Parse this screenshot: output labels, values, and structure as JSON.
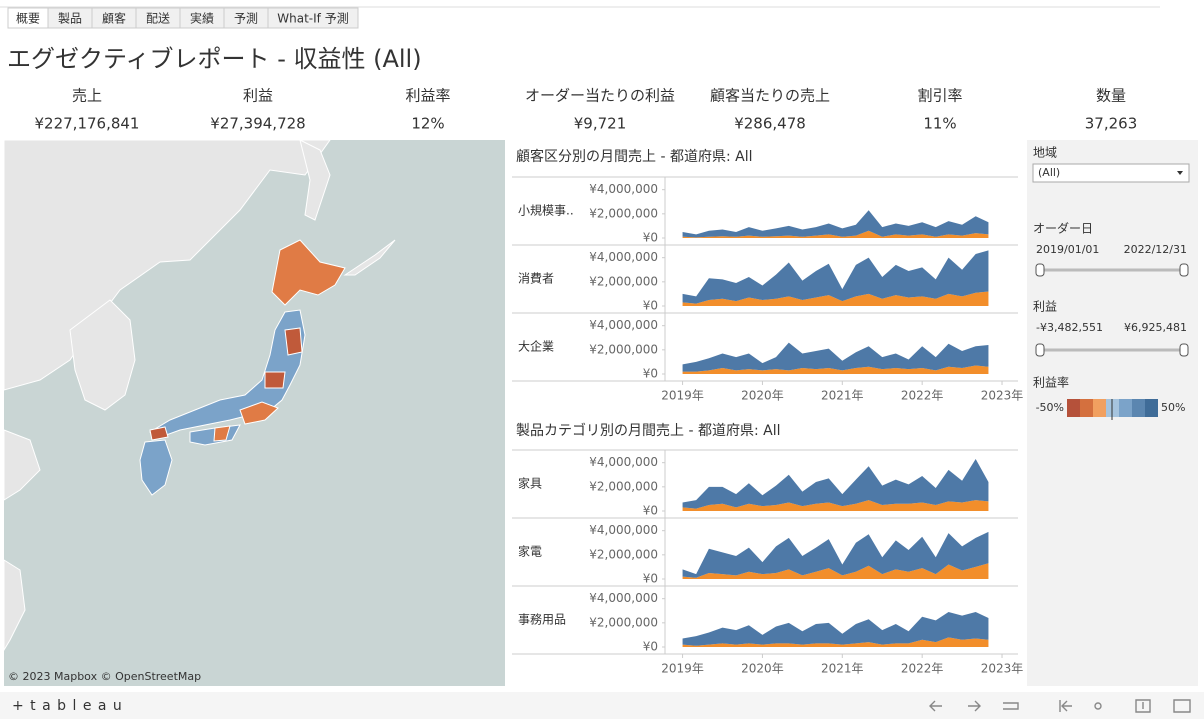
{
  "tabs": [
    "概要",
    "製品",
    "顧客",
    "配送",
    "実績",
    "予測",
    "What-If 予測"
  ],
  "dashboard_title": "エグゼクティブレポート - 収益性 (All)",
  "kpis": [
    {
      "label": "売上",
      "value": "¥227,176,841"
    },
    {
      "label": "利益",
      "value": "¥27,394,728"
    },
    {
      "label": "利益率",
      "value": "12%"
    },
    {
      "label": "オーダー当たりの利益",
      "value": "¥9,721"
    },
    {
      "label": "顧客当たりの売上",
      "value": "¥286,478"
    },
    {
      "label": "割引率",
      "value": "11%"
    },
    {
      "label": "数量",
      "value": "37,263"
    }
  ],
  "map": {
    "attribution": "© 2023 Mapbox  © OpenStreetMap"
  },
  "filters": {
    "region": {
      "label": "地域",
      "selected": "(All)"
    },
    "order_date": {
      "label": "オーダー日",
      "start": "2019/01/01",
      "end": "2022/12/31"
    },
    "profit": {
      "label": "利益",
      "min": "-¥3,482,551",
      "max": "¥6,925,481"
    },
    "profit_ratio": {
      "label": "利益率",
      "min": "-50%",
      "max": "50%"
    }
  },
  "footer": {
    "brand": "+ t a b l e a u"
  },
  "chart_data": [
    {
      "type": "area",
      "title": "顧客区分別の月間売上 - 都道府県: All",
      "x": [
        2019,
        2019.17,
        2019.33,
        2019.5,
        2019.67,
        2019.83,
        2020,
        2020.17,
        2020.33,
        2020.5,
        2020.67,
        2020.83,
        2021,
        2021.17,
        2021.33,
        2021.5,
        2021.67,
        2021.83,
        2022,
        2022.17,
        2022.33,
        2022.5,
        2022.67,
        2022.83
      ],
      "xlim": [
        2018.78,
        2023.2
      ],
      "xticks": [
        {
          "value": 2019,
          "label": "2019年"
        },
        {
          "value": 2020,
          "label": "2020年"
        },
        {
          "value": 2021,
          "label": "2021年"
        },
        {
          "value": 2022,
          "label": "2022年"
        },
        {
          "value": 2023,
          "label": "2023年"
        }
      ],
      "ylim": [
        0,
        4800000
      ],
      "yticks": [
        {
          "value": 4000000,
          "label": "¥4,000,000"
        },
        {
          "value": 2000000,
          "label": "¥2,000,000"
        },
        {
          "value": 0,
          "label": "¥0"
        }
      ],
      "panels": [
        {
          "name": "小規模事..",
          "series": [
            {
              "color": "#f28e2b",
              "values": [
                100000,
                50000,
                100000,
                150000,
                100000,
                200000,
                100000,
                150000,
                200000,
                100000,
                200000,
                300000,
                100000,
                200000,
                600000,
                100000,
                300000,
                200000,
                300000,
                100000,
                300000,
                200000,
                400000,
                300000
              ]
            },
            {
              "color": "#4e79a7",
              "values": [
                400000,
                250000,
                500000,
                550000,
                400000,
                700000,
                500000,
                650000,
                800000,
                600000,
                700000,
                900000,
                700000,
                900000,
                1700000,
                800000,
                900000,
                800000,
                1000000,
                800000,
                1100000,
                900000,
                1400000,
                1000000
              ]
            }
          ]
        },
        {
          "name": "消費者",
          "series": [
            {
              "color": "#f28e2b",
              "values": [
                300000,
                200000,
                500000,
                600000,
                400000,
                700000,
                500000,
                600000,
                800000,
                500000,
                700000,
                900000,
                400000,
                800000,
                1000000,
                600000,
                900000,
                700000,
                800000,
                600000,
                1000000,
                800000,
                1100000,
                1200000
              ]
            },
            {
              "color": "#4e79a7",
              "values": [
                700000,
                600000,
                1800000,
                1600000,
                1500000,
                1700000,
                1200000,
                2000000,
                2800000,
                1600000,
                2200000,
                2600000,
                1000000,
                2600000,
                3000000,
                1800000,
                2500000,
                2200000,
                2400000,
                1600000,
                3000000,
                2200000,
                3200000,
                3400000
              ]
            }
          ]
        },
        {
          "name": "大企業",
          "series": [
            {
              "color": "#f28e2b",
              "values": [
                200000,
                200000,
                300000,
                500000,
                300000,
                400000,
                300000,
                400000,
                300000,
                500000,
                400000,
                500000,
                300000,
                500000,
                600000,
                400000,
                500000,
                400000,
                500000,
                300000,
                600000,
                500000,
                700000,
                600000
              ]
            },
            {
              "color": "#4e79a7",
              "values": [
                600000,
                800000,
                1000000,
                1200000,
                1100000,
                1300000,
                600000,
                1000000,
                2300000,
                1200000,
                1500000,
                1600000,
                800000,
                1300000,
                1700000,
                1000000,
                1200000,
                800000,
                1800000,
                1100000,
                1900000,
                1400000,
                1600000,
                1800000
              ]
            }
          ]
        }
      ]
    },
    {
      "type": "area",
      "title": "製品カテゴリ別の月間売上 - 都道府県: All",
      "x": [
        2019,
        2019.17,
        2019.33,
        2019.5,
        2019.67,
        2019.83,
        2020,
        2020.17,
        2020.33,
        2020.5,
        2020.67,
        2020.83,
        2021,
        2021.17,
        2021.33,
        2021.5,
        2021.67,
        2021.83,
        2022,
        2022.17,
        2022.33,
        2022.5,
        2022.67,
        2022.83
      ],
      "xlim": [
        2018.78,
        2023.2
      ],
      "xticks": [
        {
          "value": 2019,
          "label": "2019年"
        },
        {
          "value": 2020,
          "label": "2020年"
        },
        {
          "value": 2021,
          "label": "2021年"
        },
        {
          "value": 2022,
          "label": "2022年"
        },
        {
          "value": 2023,
          "label": "2023年"
        }
      ],
      "ylim": [
        0,
        4800000
      ],
      "yticks": [
        {
          "value": 4000000,
          "label": "¥4,000,000"
        },
        {
          "value": 2000000,
          "label": "¥2,000,000"
        },
        {
          "value": 0,
          "label": "¥0"
        }
      ],
      "panels": [
        {
          "name": "家具",
          "series": [
            {
              "color": "#f28e2b",
              "values": [
                300000,
                200000,
                500000,
                600000,
                300000,
                600000,
                400000,
                500000,
                700000,
                400000,
                600000,
                700000,
                400000,
                600000,
                900000,
                500000,
                600000,
                600000,
                700000,
                500000,
                800000,
                700000,
                900000,
                800000
              ]
            },
            {
              "color": "#4e79a7",
              "values": [
                400000,
                700000,
                1500000,
                1400000,
                1100000,
                1700000,
                900000,
                1600000,
                2300000,
                1200000,
                1800000,
                2000000,
                1000000,
                2000000,
                2800000,
                1600000,
                2000000,
                1600000,
                2200000,
                1400000,
                2600000,
                1800000,
                3400000,
                1600000
              ]
            }
          ]
        },
        {
          "name": "家電",
          "series": [
            {
              "color": "#f28e2b",
              "values": [
                200000,
                100000,
                500000,
                400000,
                300000,
                600000,
                400000,
                500000,
                800000,
                300000,
                600000,
                900000,
                300000,
                600000,
                1100000,
                400000,
                800000,
                600000,
                900000,
                400000,
                1200000,
                700000,
                1000000,
                1300000
              ]
            },
            {
              "color": "#4e79a7",
              "values": [
                600000,
                300000,
                2000000,
                1800000,
                1600000,
                2000000,
                1000000,
                2200000,
                2600000,
                1600000,
                2000000,
                2400000,
                900000,
                2400000,
                2600000,
                1400000,
                2400000,
                1800000,
                2600000,
                1400000,
                2600000,
                2000000,
                2400000,
                2600000
              ]
            }
          ]
        },
        {
          "name": "事務用品",
          "series": [
            {
              "color": "#f28e2b",
              "values": [
                200000,
                100000,
                200000,
                300000,
                200000,
                300000,
                200000,
                300000,
                300000,
                200000,
                300000,
                300000,
                200000,
                300000,
                400000,
                200000,
                300000,
                300000,
                600000,
                400000,
                800000,
                600000,
                700000,
                600000
              ]
            },
            {
              "color": "#4e79a7",
              "values": [
                500000,
                800000,
                1000000,
                1300000,
                1200000,
                1500000,
                800000,
                1400000,
                1700000,
                1100000,
                1600000,
                1700000,
                900000,
                1600000,
                1900000,
                1200000,
                1600000,
                1000000,
                1900000,
                1800000,
                2100000,
                2000000,
                2200000,
                1800000
              ]
            }
          ]
        }
      ]
    }
  ]
}
